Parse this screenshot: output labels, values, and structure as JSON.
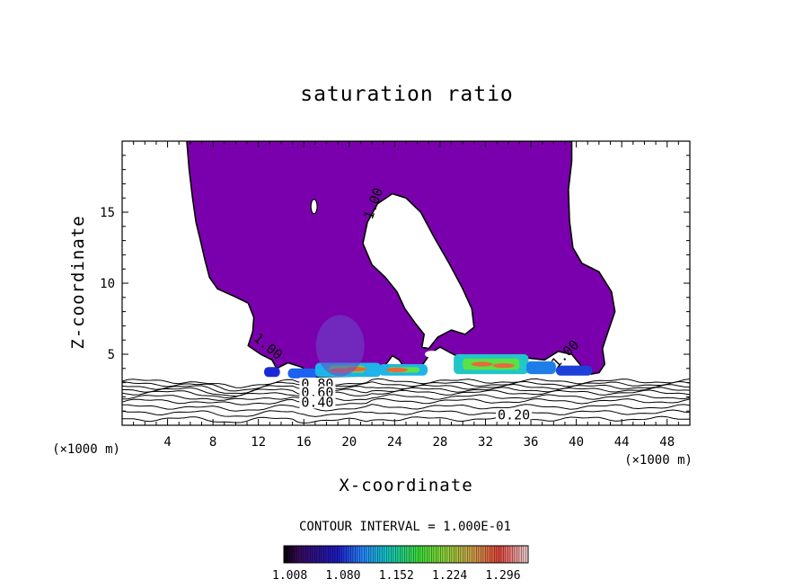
{
  "chart_data": {
    "type": "contour",
    "title": "saturation ratio",
    "xlabel": "X-coordinate",
    "ylabel": "Z-coordinate",
    "x_unit": "(×1000 m)",
    "y_unit": "(×1000 m)",
    "xlim": [
      0,
      50
    ],
    "ylim": [
      0,
      20
    ],
    "x_ticks": [
      4,
      8,
      12,
      16,
      20,
      24,
      28,
      32,
      36,
      40,
      44,
      48
    ],
    "y_ticks": [
      5,
      10,
      15
    ],
    "contour_interval_label": "CONTOUR INTERVAL = 1.000E-01",
    "colorbar": {
      "min": 1.0,
      "max": 1.33,
      "labels": [
        "1.008",
        "1.080",
        "1.152",
        "1.224",
        "1.296"
      ],
      "label_values": [
        1.008,
        1.08,
        1.152,
        1.224,
        1.296
      ]
    },
    "contour_labels": [
      {
        "text": "1.00",
        "x": 22.5,
        "z": 15.5
      },
      {
        "text": "1.00",
        "x": 12.6,
        "z": 5.3
      },
      {
        "text": "1.00",
        "x": 39.3,
        "z": 4.8
      },
      {
        "text": "0.80",
        "x": 17.2,
        "z": 2.6
      },
      {
        "text": "0.60",
        "x": 17.2,
        "z": 2.0
      },
      {
        "text": "0.40",
        "x": 17.2,
        "z": 1.3
      },
      {
        "text": "0.20",
        "x": 34.5,
        "z": 0.4
      }
    ],
    "fill_color": "#7b00ad"
  }
}
